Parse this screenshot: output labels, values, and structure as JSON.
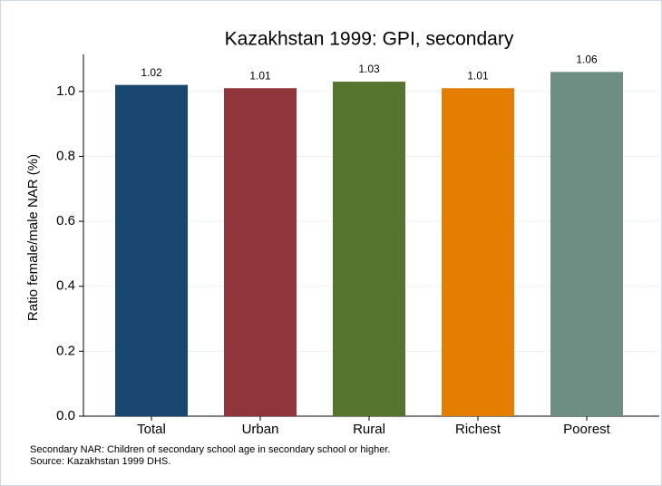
{
  "chart_data": {
    "type": "bar",
    "title": "Kazakhstan 1999: GPI, secondary",
    "y_label": "Ratio female/male NAR (%)",
    "categories": [
      "Total",
      "Urban",
      "Rural",
      "Richest",
      "Poorest"
    ],
    "values": [
      1.02,
      1.01,
      1.03,
      1.01,
      1.06
    ],
    "colors": [
      "#1a476f",
      "#90353b",
      "#55752f",
      "#e37e00",
      "#6e8e84"
    ],
    "ylim": [
      0,
      1.1
    ],
    "yticks": [
      {
        "value": 0,
        "label": "0.0"
      },
      0.2,
      0.4,
      0.6,
      0.8,
      {
        "value": 1,
        "label": "1.0"
      }
    ],
    "grid": true,
    "notes": [
      "Secondary NAR: Children of secondary school age in secondary school or higher.",
      "Source: Kazakhstan 1999 DHS."
    ]
  }
}
